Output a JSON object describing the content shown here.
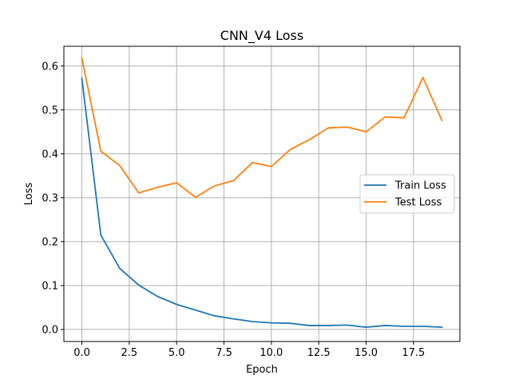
{
  "chart_data": {
    "type": "line",
    "title": "CNN_V4 Loss",
    "xlabel": "Epoch",
    "ylabel": "Loss",
    "xlim": [
      -0.95,
      19.95
    ],
    "ylim": [
      -0.0275,
      0.645
    ],
    "xticks": [
      0,
      2.5,
      5,
      7.5,
      10,
      12.5,
      15,
      17.5
    ],
    "xtick_labels": [
      "0.0",
      "2.5",
      "5.0",
      "7.5",
      "10.0",
      "12.5",
      "15.0",
      "17.5"
    ],
    "yticks": [
      0,
      0.1,
      0.2,
      0.3,
      0.4,
      0.5,
      0.6
    ],
    "ytick_labels": [
      "0.0",
      "0.1",
      "0.2",
      "0.3",
      "0.4",
      "0.5",
      "0.6"
    ],
    "grid": true,
    "legend_position": "center-right",
    "x": [
      0,
      1,
      2,
      3,
      4,
      5,
      6,
      7,
      8,
      9,
      10,
      11,
      12,
      13,
      14,
      15,
      16,
      17,
      18,
      19
    ],
    "series": [
      {
        "name": "Train Loss",
        "color": "#1f77b4",
        "values": [
          0.572,
          0.215,
          0.139,
          0.101,
          0.075,
          0.057,
          0.044,
          0.031,
          0.024,
          0.018,
          0.015,
          0.014,
          0.009,
          0.009,
          0.01,
          0.005,
          0.009,
          0.007,
          0.007,
          0.005
        ]
      },
      {
        "name": "Test Loss",
        "color": "#ff7f0e",
        "values": [
          0.618,
          0.406,
          0.373,
          0.311,
          0.324,
          0.334,
          0.301,
          0.327,
          0.339,
          0.38,
          0.371,
          0.41,
          0.432,
          0.459,
          0.461,
          0.45,
          0.484,
          0.482,
          0.574,
          0.476
        ]
      }
    ]
  }
}
